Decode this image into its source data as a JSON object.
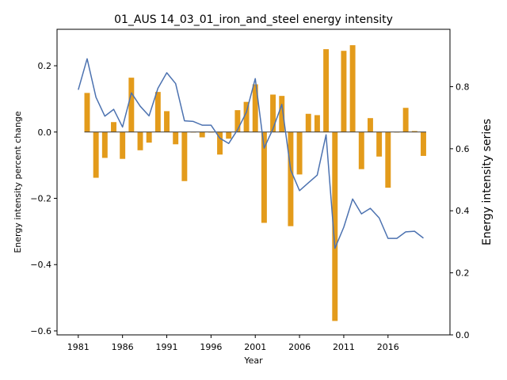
{
  "chart_data": {
    "type": "bar+line",
    "title": "01_AUS 14_03_01_iron_and_steel energy intensity",
    "xlabel": "Year",
    "ylabel_left": "Energy intensity percent change",
    "ylabel_right": "Energy intensity series",
    "x_ticks": [
      1981,
      1986,
      1991,
      1996,
      2001,
      2006,
      2011,
      2016
    ],
    "y_left_ticks": [
      -0.6,
      -0.4,
      -0.2,
      0.0,
      0.2
    ],
    "y_left_tick_labels": [
      "−0.6",
      "−0.4",
      "−0.2",
      "0.0",
      "0.2"
    ],
    "y_right_ticks": [
      0.0,
      0.2,
      0.4,
      0.6,
      0.8
    ],
    "y_right_tick_labels": [
      "0.0",
      "0.2",
      "0.4",
      "0.6",
      "0.8"
    ],
    "ylim_left": [
      -0.612,
      0.31
    ],
    "ylim_right": [
      0.0,
      0.985
    ],
    "xlim": [
      1978.6,
      2023.0
    ],
    "bar_color": "#e39b1b",
    "line_color": "#4c72b0",
    "series": [
      {
        "kind": "bar",
        "axis": "left",
        "x": [
          1982,
          1983,
          1984,
          1985,
          1986,
          1987,
          1988,
          1989,
          1990,
          1991,
          1992,
          1993,
          1994,
          1995,
          1996,
          1997,
          1998,
          1999,
          2000,
          2001,
          2002,
          2003,
          2004,
          2005,
          2006,
          2007,
          2008,
          2009,
          2010,
          2011,
          2012,
          2013,
          2014,
          2015,
          2016,
          2017,
          2018,
          2019,
          2020
        ],
        "values": [
          0.118,
          -0.138,
          -0.078,
          0.03,
          -0.081,
          0.164,
          -0.055,
          -0.032,
          0.121,
          0.063,
          -0.037,
          -0.148,
          0.0,
          -0.016,
          0.0,
          -0.068,
          -0.02,
          0.066,
          0.091,
          0.144,
          -0.274,
          0.113,
          0.109,
          -0.284,
          -0.128,
          0.055,
          0.051,
          0.25,
          -0.57,
          0.245,
          0.262,
          -0.112,
          0.042,
          -0.074,
          -0.168,
          0.0,
          0.073,
          0.003,
          -0.072
        ]
      },
      {
        "kind": "line",
        "axis": "right",
        "x": [
          1981,
          1982,
          1983,
          1984,
          1985,
          1986,
          1987,
          1988,
          1989,
          1990,
          1991,
          1992,
          1993,
          1994,
          1995,
          1996,
          1997,
          1998,
          1999,
          2000,
          2001,
          2002,
          2003,
          2004,
          2005,
          2006,
          2007,
          2008,
          2009,
          2010,
          2011,
          2012,
          2013,
          2014,
          2015,
          2016,
          2017,
          2018,
          2019,
          2020
        ],
        "values": [
          0.79,
          0.89,
          0.766,
          0.705,
          0.727,
          0.67,
          0.78,
          0.737,
          0.706,
          0.795,
          0.845,
          0.81,
          0.69,
          0.688,
          0.676,
          0.676,
          0.634,
          0.617,
          0.661,
          0.718,
          0.826,
          0.602,
          0.664,
          0.743,
          0.532,
          0.465,
          0.49,
          0.515,
          0.645,
          0.279,
          0.347,
          0.438,
          0.39,
          0.408,
          0.377,
          0.311,
          0.311,
          0.332,
          0.334,
          0.312
        ]
      }
    ]
  }
}
